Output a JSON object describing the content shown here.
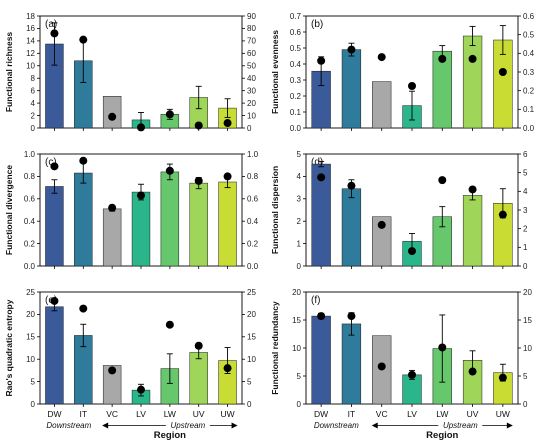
{
  "colors": [
    "#3a5a99",
    "#2f7b9c",
    "#a8a8a8",
    "#2bb58a",
    "#67c76c",
    "#9fd65a",
    "#c9dc33"
  ],
  "chart_data": [
    {
      "type": "bar",
      "panel_label": "(a)",
      "ylabel": "Functional richness",
      "categories": [
        "DW",
        "IT",
        "VC",
        "LV",
        "LW",
        "UV",
        "UW"
      ],
      "values": [
        13.5,
        10.8,
        5.1,
        1.3,
        2.2,
        4.9,
        3.2
      ],
      "errors": [
        3.4,
        3.5,
        0,
        1.2,
        0.8,
        1.8,
        1.5
      ],
      "ylim": [
        0,
        18
      ],
      "yticks": [
        0,
        2,
        4,
        6,
        8,
        10,
        12,
        14,
        16,
        18
      ],
      "points": [
        76,
        71,
        9,
        0.5,
        11,
        2,
        4
      ],
      "y2lim": [
        0,
        90
      ],
      "y2ticks": [
        0,
        10,
        20,
        30,
        40,
        50,
        60,
        70,
        80,
        90
      ]
    },
    {
      "type": "bar",
      "panel_label": "(b)",
      "ylabel": "Functional evenness",
      "categories": [
        "DW",
        "IT",
        "VC",
        "LV",
        "LW",
        "UV",
        "UW"
      ],
      "values": [
        0.355,
        0.49,
        0.29,
        0.14,
        0.48,
        0.575,
        0.55
      ],
      "errors": [
        0.09,
        0.04,
        0,
        0.09,
        0.035,
        0.06,
        0.09
      ],
      "ylim": [
        0,
        0.7
      ],
      "yticks": [
        0.0,
        0.1,
        0.2,
        0.3,
        0.4,
        0.5,
        0.6,
        0.7
      ],
      "points": [
        0.36,
        0.42,
        0.38,
        0.225,
        0.37,
        0.37,
        0.3
      ],
      "y2lim": [
        0,
        0.6
      ],
      "y2ticks": [
        0.0,
        0.1,
        0.2,
        0.3,
        0.4,
        0.5,
        0.6
      ]
    },
    {
      "type": "bar",
      "panel_label": "(c)",
      "ylabel": "Functional divergence",
      "categories": [
        "DW",
        "IT",
        "VC",
        "LV",
        "LW",
        "UV",
        "UW"
      ],
      "values": [
        0.71,
        0.83,
        0.51,
        0.66,
        0.84,
        0.74,
        0.75
      ],
      "errors": [
        0.06,
        0.09,
        0.02,
        0.07,
        0.07,
        0.05,
        0.05
      ],
      "ylim": [
        0,
        1.0
      ],
      "yticks": [
        0.0,
        0.2,
        0.4,
        0.6,
        0.8,
        1.0
      ],
      "points": [
        0.89,
        0.94,
        0.52,
        0.63,
        0.85,
        0.76,
        0.8
      ],
      "y2lim": [
        0,
        1.0
      ],
      "y2ticks": [
        0.0,
        0.2,
        0.4,
        0.6,
        0.8,
        1.0
      ]
    },
    {
      "type": "bar",
      "panel_label": "(d)",
      "ylabel": "Functional dispersion",
      "categories": [
        "DW",
        "IT",
        "VC",
        "LV",
        "LW",
        "UV",
        "UW"
      ],
      "values": [
        4.55,
        3.45,
        2.2,
        1.1,
        2.2,
        3.15,
        2.8
      ],
      "errors": [
        0.12,
        0.4,
        0,
        0.35,
        0.45,
        0.2,
        0.65
      ],
      "ylim": [
        0,
        5.0
      ],
      "yticks": [
        0,
        1,
        2,
        3,
        4,
        5
      ],
      "points": [
        4.75,
        4.3,
        2.2,
        0.8,
        4.6,
        4.1,
        2.75
      ],
      "y2lim": [
        0,
        6.0
      ],
      "y2ticks": [
        0.0,
        1.0,
        2.0,
        3.0,
        4.0,
        5.0,
        6.0
      ]
    },
    {
      "type": "bar",
      "panel_label": "(e)",
      "ylabel": "Rao's quadratic entropy",
      "categories": [
        "DW",
        "IT",
        "VC",
        "LV",
        "LW",
        "UV",
        "UW"
      ],
      "values": [
        21.7,
        15.3,
        8.6,
        3.1,
        7.9,
        11.5,
        9.7
      ],
      "errors": [
        0.9,
        2.5,
        0,
        1.3,
        3.3,
        1.4,
        2.9
      ],
      "ylim": [
        0,
        25
      ],
      "yticks": [
        0,
        5,
        10,
        15,
        20,
        25
      ],
      "points": [
        23,
        21.3,
        7.5,
        3.2,
        17.7,
        13,
        8
      ],
      "y2lim": [
        0,
        25
      ],
      "y2ticks": [
        0,
        5,
        10,
        15,
        20,
        25
      ]
    },
    {
      "type": "bar",
      "panel_label": "(f)",
      "ylabel": "Functional redundancy",
      "categories": [
        "DW",
        "IT",
        "VC",
        "LV",
        "LW",
        "UV",
        "UW"
      ],
      "values": [
        15.7,
        14.3,
        12.2,
        5.2,
        9.9,
        7.8,
        5.6
      ],
      "errors": [
        0.5,
        2.0,
        0,
        0.8,
        6.0,
        1.7,
        1.5
      ],
      "ylim": [
        0,
        20
      ],
      "yticks": [
        0,
        5,
        10,
        15,
        20
      ],
      "points": [
        15.7,
        15.7,
        6.7,
        5.2,
        10.1,
        5.8,
        4.7
      ],
      "y2lim": [
        0,
        20
      ],
      "y2ticks": [
        0,
        5,
        10,
        15,
        20
      ]
    }
  ],
  "region": {
    "title": "Region",
    "downstream": "Downstream",
    "upstream": "Upstream"
  }
}
